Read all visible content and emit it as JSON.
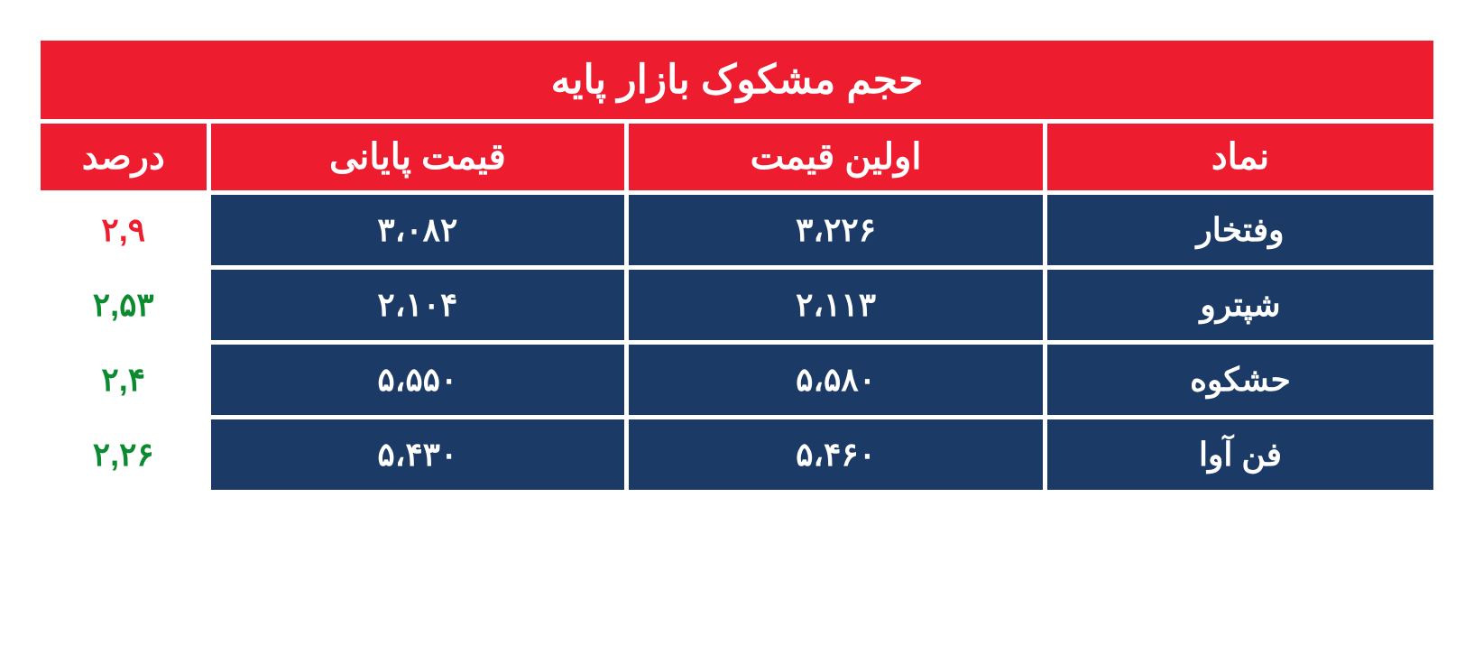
{
  "table": {
    "title": "حجم مشکوک بازار پایه",
    "columns": [
      "نماد",
      "اولین قیمت",
      "قیمت پایانی",
      "درصد"
    ],
    "rows": [
      {
        "symbol": "وفتخار",
        "first_price": "۳،۲۲۶",
        "last_price": "۳،۰۸۲",
        "percent": "۲,۹",
        "percent_kind": "neg"
      },
      {
        "symbol": "شپترو",
        "first_price": "۲،۱۱۳",
        "last_price": "۲،۱۰۴",
        "percent": "۲,۵۳",
        "percent_kind": "pos"
      },
      {
        "symbol": "حشکوه",
        "first_price": "۵،۵۸۰",
        "last_price": "۵،۵۵۰",
        "percent": "۲,۴",
        "percent_kind": "pos"
      },
      {
        "symbol": "فن آوا",
        "first_price": "۵،۴۶۰",
        "last_price": "۵،۴۳۰",
        "percent": "۲,۲۶",
        "percent_kind": "pos"
      }
    ],
    "style": {
      "title_bg": "#ed1c2e",
      "header_bg": "#ed1c2e",
      "data_bg": "#1b3a66",
      "percent_bg": "#ffffff",
      "title_color": "#ffffff",
      "header_color": "#ffffff",
      "data_color": "#ffffff",
      "pos_color": "#0b8a2f",
      "neg_color": "#ed1c2e",
      "title_fontsize": 44,
      "header_fontsize": 40,
      "data_fontsize": 36,
      "border_spacing": 5,
      "col_widths_pct": [
        28,
        30,
        30,
        12
      ]
    }
  }
}
